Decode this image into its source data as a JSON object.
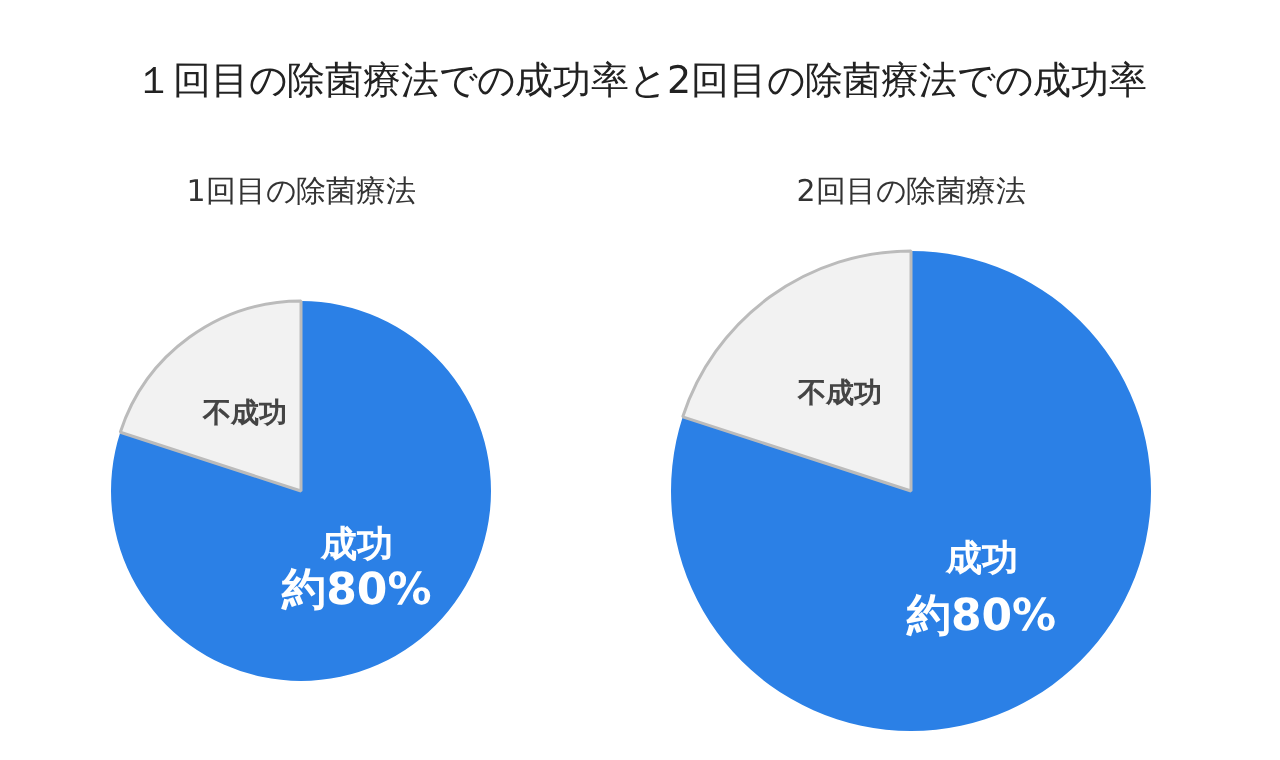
{
  "chart_data": [
    {
      "type": "pie",
      "title": "１回目の除菌療法での成功率と2回目の除菌療法での成功率",
      "subtitle": "1回目の除菌療法",
      "categories": [
        "成功",
        "不成功"
      ],
      "values": [
        80,
        20
      ],
      "colors": [
        "#2b80e6",
        "#f2f2f2"
      ],
      "value_labels": [
        "約80%",
        null
      ]
    },
    {
      "type": "pie",
      "subtitle": "2回目の除菌療法",
      "categories": [
        "成功",
        "不成功"
      ],
      "values": [
        80,
        20
      ],
      "colors": [
        "#2b80e6",
        "#f2f2f2"
      ],
      "value_labels": [
        "約80%",
        null
      ]
    }
  ]
}
